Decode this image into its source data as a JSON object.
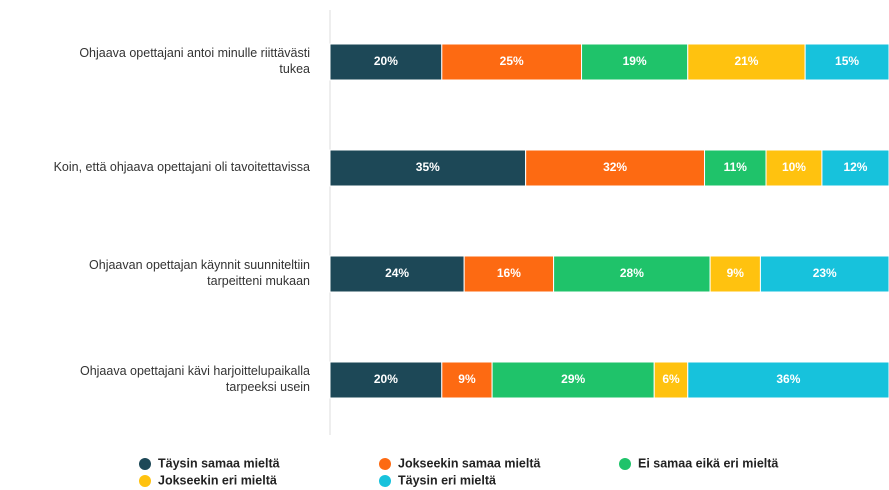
{
  "chart_data": {
    "type": "stacked-bar-horizontal",
    "categories": [
      "Ohjaava opettajani antoi minulle riittävästi tukea",
      "Koin, että ohjaava opettajani oli tavoitettavissa",
      "Ohjaavan opettajan käynnit suunniteltiin tarpeitteni mukaan",
      "Ohjaava opettajani kävi harjoittelupaikalla tarpeeksi usein"
    ],
    "series": [
      {
        "name": "Täysin samaa mieltä",
        "color": "#1d4857",
        "values": [
          20,
          35,
          24,
          20
        ],
        "value_labels": [
          "20%",
          "35%",
          "24%",
          "20%"
        ]
      },
      {
        "name": "Jokseekin samaa mieltä",
        "color": "#fd6a12",
        "values": [
          25,
          32,
          16,
          9
        ],
        "value_labels": [
          "25%",
          "32%",
          "16%",
          "9%"
        ]
      },
      {
        "name": "Ei samaa eikä eri mieltä",
        "color": "#1fc36a",
        "values": [
          19,
          11,
          28,
          29
        ],
        "value_labels": [
          "19%",
          "11%",
          "28%",
          "29%"
        ]
      },
      {
        "name": "Jokseekin eri mieltä",
        "color": "#ffc20f",
        "values": [
          21,
          10,
          9,
          6
        ],
        "value_labels": [
          "21%",
          "10%",
          "9%",
          "6%"
        ]
      },
      {
        "name": "Täysin eri mieltä",
        "color": "#17c2dc",
        "values": [
          15,
          12,
          23,
          36
        ],
        "value_labels": [
          "15%",
          "12%",
          "23%",
          "36%"
        ]
      }
    ]
  }
}
